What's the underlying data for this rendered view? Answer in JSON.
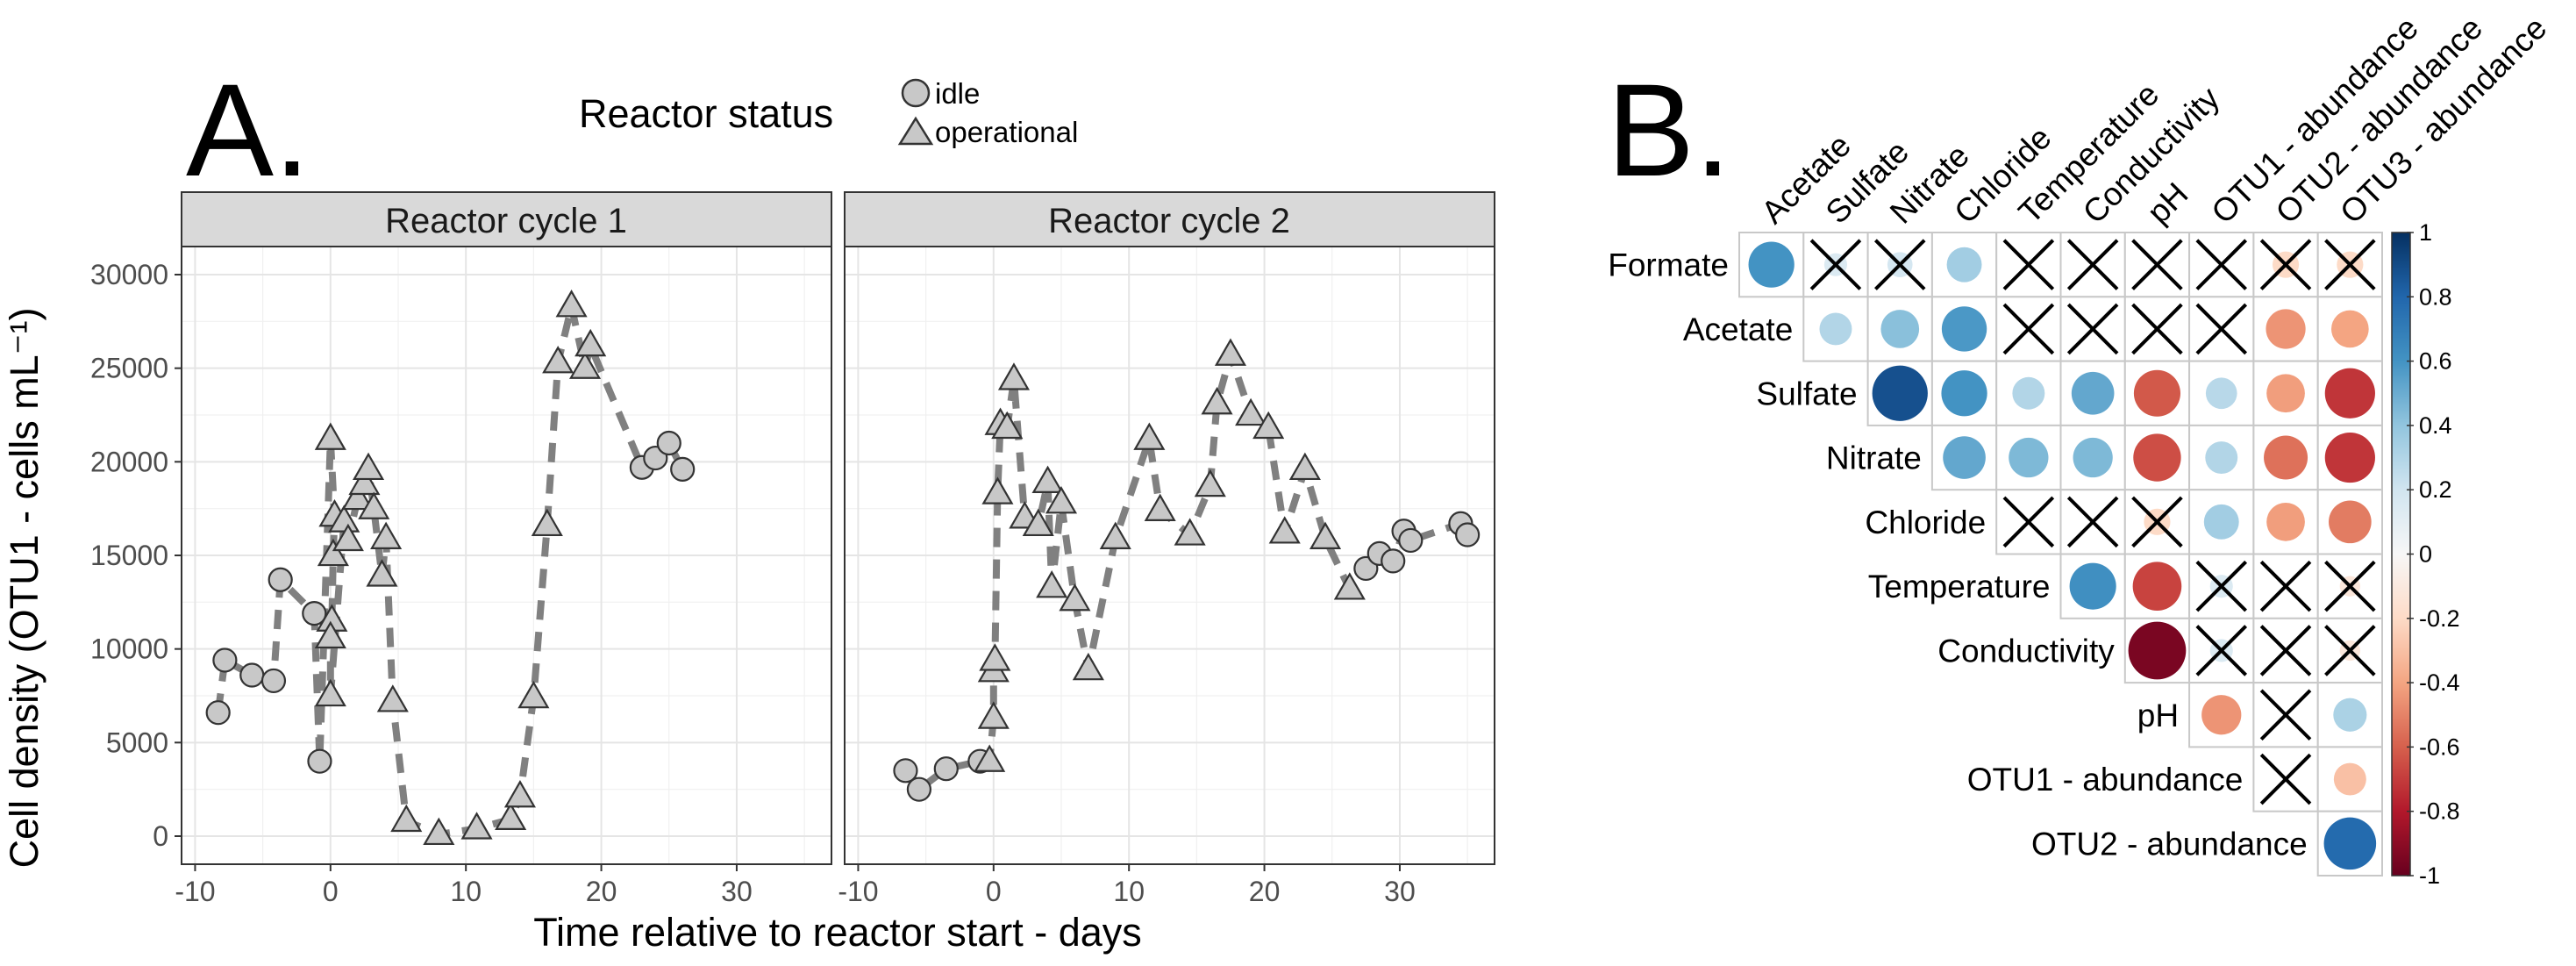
{
  "panel_a": {
    "letter": "A.",
    "legend": {
      "title": "Reactor status",
      "items": [
        {
          "label": "idle",
          "shape": "circle"
        },
        {
          "label": "operational",
          "shape": "triangle"
        }
      ]
    },
    "colors": {
      "point_fill": "#c8c8c8",
      "point_stroke": "#333333",
      "line": "#808080",
      "strip": "#d9d9d9"
    }
  },
  "panel_b": {
    "letter": "B."
  },
  "chart_data": [
    {
      "type": "scatter",
      "title": "",
      "xlabel": "Time relative to reactor start - days",
      "ylabel": "Cell density (OTU1 - cells mL⁻¹)",
      "xlim": [
        -11,
        37
      ],
      "ylim": [
        -1500,
        31500
      ],
      "x_ticks": [
        -10,
        0,
        10,
        20,
        30
      ],
      "y_ticks": [
        0,
        5000,
        10000,
        15000,
        20000,
        25000,
        30000
      ],
      "grid": true,
      "legend_position": "top",
      "facets": [
        {
          "label": "Reactor cycle 1",
          "points": [
            {
              "x": -8.3,
              "y": 6600,
              "status": "idle"
            },
            {
              "x": -7.8,
              "y": 9400,
              "status": "idle"
            },
            {
              "x": -5.8,
              "y": 8600,
              "status": "idle"
            },
            {
              "x": -4.2,
              "y": 8300,
              "status": "idle"
            },
            {
              "x": -3.7,
              "y": 13700,
              "status": "idle"
            },
            {
              "x": -1.2,
              "y": 11900,
              "status": "idle"
            },
            {
              "x": -0.8,
              "y": 4000,
              "status": "idle"
            },
            {
              "x": 0.0,
              "y": 21200,
              "status": "operational"
            },
            {
              "x": 0.3,
              "y": 17100,
              "status": "operational"
            },
            {
              "x": 0.2,
              "y": 15000,
              "status": "operational"
            },
            {
              "x": 0.1,
              "y": 11500,
              "status": "operational"
            },
            {
              "x": 0.0,
              "y": 10600,
              "status": "operational"
            },
            {
              "x": 0.0,
              "y": 7500,
              "status": "operational"
            },
            {
              "x": 1.0,
              "y": 16800,
              "status": "operational"
            },
            {
              "x": 1.3,
              "y": 15800,
              "status": "operational"
            },
            {
              "x": 2.0,
              "y": 18000,
              "status": "operational"
            },
            {
              "x": 2.5,
              "y": 18800,
              "status": "operational"
            },
            {
              "x": 2.8,
              "y": 19600,
              "status": "operational"
            },
            {
              "x": 3.2,
              "y": 17500,
              "status": "operational"
            },
            {
              "x": 3.8,
              "y": 13900,
              "status": "operational"
            },
            {
              "x": 4.1,
              "y": 15900,
              "status": "operational"
            },
            {
              "x": 4.6,
              "y": 7200,
              "status": "operational"
            },
            {
              "x": 5.6,
              "y": 800,
              "status": "operational"
            },
            {
              "x": 8.0,
              "y": 100,
              "status": "operational"
            },
            {
              "x": 10.8,
              "y": 400,
              "status": "operational"
            },
            {
              "x": 13.3,
              "y": 900,
              "status": "operational"
            },
            {
              "x": 14.0,
              "y": 2100,
              "status": "operational"
            },
            {
              "x": 15.0,
              "y": 7400,
              "status": "operational"
            },
            {
              "x": 16.0,
              "y": 16600,
              "status": "operational"
            },
            {
              "x": 16.8,
              "y": 25300,
              "status": "operational"
            },
            {
              "x": 17.8,
              "y": 28300,
              "status": "operational"
            },
            {
              "x": 18.8,
              "y": 25000,
              "status": "operational"
            },
            {
              "x": 19.2,
              "y": 26200,
              "status": "operational"
            },
            {
              "x": 23.0,
              "y": 19700,
              "status": "idle"
            },
            {
              "x": 24.0,
              "y": 20200,
              "status": "idle"
            },
            {
              "x": 25.0,
              "y": 21000,
              "status": "idle"
            },
            {
              "x": 26.0,
              "y": 19600,
              "status": "idle"
            }
          ]
        },
        {
          "label": "Reactor cycle 2",
          "points": [
            {
              "x": -6.5,
              "y": 3500,
              "status": "idle"
            },
            {
              "x": -5.5,
              "y": 2500,
              "status": "idle"
            },
            {
              "x": -3.5,
              "y": 3600,
              "status": "idle"
            },
            {
              "x": -1.0,
              "y": 4000,
              "status": "idle"
            },
            {
              "x": -0.3,
              "y": 4000,
              "status": "operational"
            },
            {
              "x": 0.0,
              "y": 6300,
              "status": "operational"
            },
            {
              "x": 0.0,
              "y": 8800,
              "status": "operational"
            },
            {
              "x": 0.1,
              "y": 9400,
              "status": "operational"
            },
            {
              "x": 0.3,
              "y": 18300,
              "status": "operational"
            },
            {
              "x": 0.5,
              "y": 22000,
              "status": "operational"
            },
            {
              "x": 1.0,
              "y": 21800,
              "status": "operational"
            },
            {
              "x": 1.5,
              "y": 24400,
              "status": "operational"
            },
            {
              "x": 2.3,
              "y": 17000,
              "status": "operational"
            },
            {
              "x": 3.3,
              "y": 16600,
              "status": "operational"
            },
            {
              "x": 4.0,
              "y": 18900,
              "status": "operational"
            },
            {
              "x": 4.3,
              "y": 13300,
              "status": "operational"
            },
            {
              "x": 5.0,
              "y": 17800,
              "status": "operational"
            },
            {
              "x": 6.0,
              "y": 12600,
              "status": "operational"
            },
            {
              "x": 7.0,
              "y": 8900,
              "status": "operational"
            },
            {
              "x": 9.0,
              "y": 15900,
              "status": "operational"
            },
            {
              "x": 11.5,
              "y": 21200,
              "status": "operational"
            },
            {
              "x": 12.3,
              "y": 17400,
              "status": "operational"
            },
            {
              "x": 14.5,
              "y": 16100,
              "status": "operational"
            },
            {
              "x": 16.0,
              "y": 18700,
              "status": "operational"
            },
            {
              "x": 16.5,
              "y": 23100,
              "status": "operational"
            },
            {
              "x": 17.5,
              "y": 25700,
              "status": "operational"
            },
            {
              "x": 19.0,
              "y": 22500,
              "status": "operational"
            },
            {
              "x": 20.3,
              "y": 21800,
              "status": "operational"
            },
            {
              "x": 21.5,
              "y": 16200,
              "status": "operational"
            },
            {
              "x": 23.0,
              "y": 19600,
              "status": "operational"
            },
            {
              "x": 24.5,
              "y": 15900,
              "status": "operational"
            },
            {
              "x": 26.3,
              "y": 13200,
              "status": "operational"
            },
            {
              "x": 27.5,
              "y": 14300,
              "status": "idle"
            },
            {
              "x": 28.5,
              "y": 15100,
              "status": "idle"
            },
            {
              "x": 29.5,
              "y": 14700,
              "status": "idle"
            },
            {
              "x": 30.3,
              "y": 16300,
              "status": "idle"
            },
            {
              "x": 30.8,
              "y": 15800,
              "status": "idle"
            },
            {
              "x": 34.5,
              "y": 16700,
              "status": "idle"
            },
            {
              "x": 35.0,
              "y": 16100,
              "status": "idle"
            }
          ]
        }
      ]
    },
    {
      "type": "heatmap",
      "title": "",
      "col_labels": [
        "Acetate",
        "Sulfate",
        "Nitrate",
        "Chloride",
        "Temperature",
        "Conductivity",
        "pH",
        "OTU1 - abundance",
        "OTU2 - abundance",
        "OTU3 - abundance"
      ],
      "row_labels": [
        "Formate",
        "Acetate",
        "Sulfate",
        "Nitrate",
        "Chloride",
        "Temperature",
        "Conductivity",
        "pH",
        "OTU1 - abundance",
        "OTU2 - abundance"
      ],
      "colorbar": {
        "ticks": [
          "1",
          "0.8",
          "0.6",
          "0.4",
          "0.2",
          "0",
          "-0.2",
          "-0.4",
          "-0.6",
          "-0.8",
          "-1"
        ],
        "range": [
          -1,
          1
        ]
      },
      "cells": [
        [
          0.6,
          0.15,
          0.18,
          0.35,
          0.0,
          0.0,
          0.0,
          0.0,
          -0.2,
          -0.2
        ],
        [
          null,
          0.3,
          0.42,
          0.58,
          0.0,
          0.0,
          0.0,
          0.0,
          -0.45,
          -0.4
        ],
        [
          null,
          null,
          0.88,
          0.6,
          0.3,
          0.52,
          -0.62,
          0.28,
          -0.42,
          -0.72
        ],
        [
          null,
          null,
          null,
          0.52,
          0.45,
          0.45,
          -0.65,
          0.3,
          -0.55,
          -0.72
        ],
        [
          null,
          null,
          null,
          null,
          0.0,
          0.0,
          -0.2,
          0.35,
          -0.42,
          -0.52
        ],
        [
          null,
          null,
          null,
          null,
          null,
          0.62,
          -0.68,
          0.15,
          0.0,
          -0.12
        ],
        [
          null,
          null,
          null,
          null,
          null,
          null,
          -0.95,
          0.15,
          0.0,
          -0.12
        ],
        [
          null,
          null,
          null,
          null,
          null,
          null,
          null,
          -0.45,
          0.0,
          0.32
        ],
        [
          null,
          null,
          null,
          null,
          null,
          null,
          null,
          null,
          0.0,
          -0.3
        ],
        [
          null,
          null,
          null,
          null,
          null,
          null,
          null,
          null,
          null,
          0.78
        ]
      ],
      "crossed": [
        [
          false,
          true,
          true,
          false,
          true,
          true,
          true,
          true,
          true,
          true
        ],
        [
          null,
          false,
          false,
          false,
          true,
          true,
          true,
          true,
          false,
          false
        ],
        [
          null,
          null,
          false,
          false,
          false,
          false,
          false,
          false,
          false,
          false
        ],
        [
          null,
          null,
          null,
          false,
          false,
          false,
          false,
          false,
          false,
          false
        ],
        [
          null,
          null,
          null,
          null,
          true,
          true,
          true,
          false,
          false,
          false
        ],
        [
          null,
          null,
          null,
          null,
          null,
          false,
          false,
          true,
          true,
          true
        ],
        [
          null,
          null,
          null,
          null,
          null,
          null,
          false,
          true,
          true,
          true
        ],
        [
          null,
          null,
          null,
          null,
          null,
          null,
          null,
          false,
          true,
          false
        ],
        [
          null,
          null,
          null,
          null,
          null,
          null,
          null,
          null,
          true,
          false
        ],
        [
          null,
          null,
          null,
          null,
          null,
          null,
          null,
          null,
          null,
          false
        ]
      ]
    }
  ]
}
